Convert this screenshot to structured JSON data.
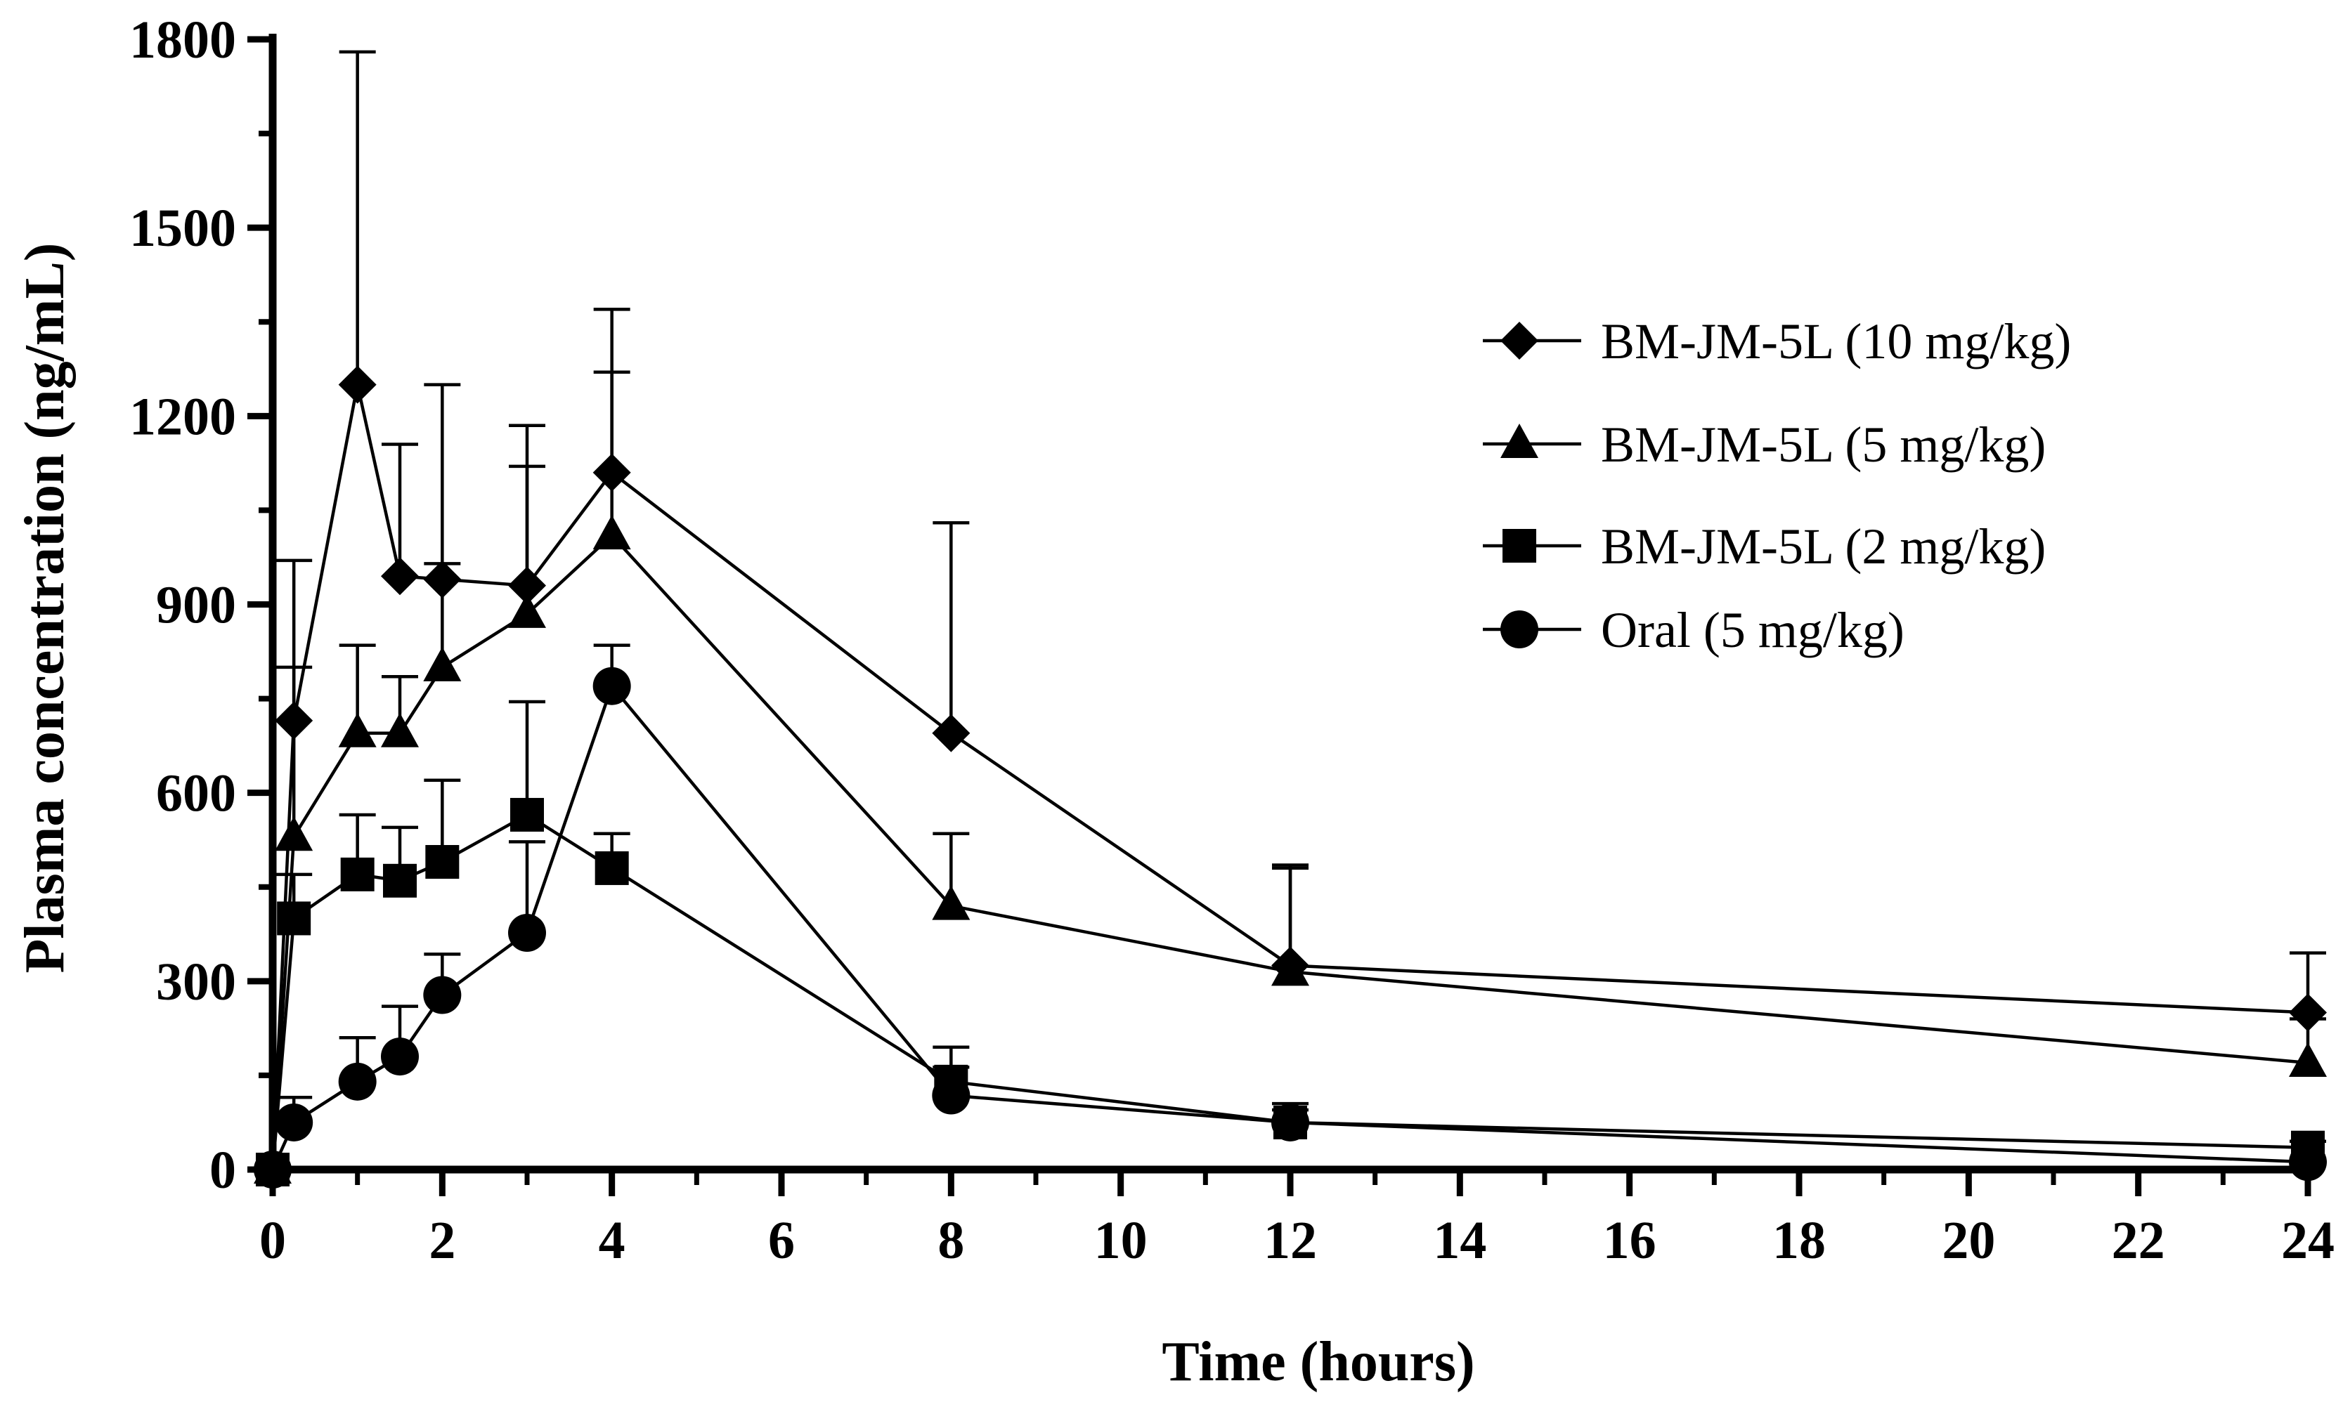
{
  "chart_data": {
    "type": "line",
    "title": "",
    "xlabel": "Time (hours)",
    "ylabel": "Plasma concentration  (ng/mL)",
    "xlim": [
      0,
      24
    ],
    "ylim": [
      0,
      1800
    ],
    "xticks": [
      "0",
      "2",
      "4",
      "6",
      "8",
      "10",
      "12",
      "14",
      "16",
      "18",
      "20",
      "22",
      "24"
    ],
    "yticks": [
      "0",
      "300",
      "600",
      "900",
      "1200",
      "1500",
      "1800"
    ],
    "grid": false,
    "legend_position": "top-right",
    "series": [
      {
        "name": "BM-JM-5L (10 mg/kg)",
        "marker": "diamond",
        "x": [
          0,
          0.25,
          1,
          1.5,
          2,
          3,
          4,
          8,
          12,
          24
        ],
        "y": [
          0,
          715,
          1250,
          945,
          940,
          930,
          1110,
          695,
          325,
          250
        ],
        "err": [
          0,
          255,
          530,
          210,
          310,
          255,
          260,
          335,
          160,
          95
        ]
      },
      {
        "name": "BM-JM-5L (5 mg/kg)",
        "marker": "triangle",
        "x": [
          0,
          0.25,
          1,
          1.5,
          2,
          3,
          4,
          8,
          12,
          24
        ],
        "y": [
          0,
          530,
          695,
          695,
          800,
          885,
          1010,
          420,
          315,
          170
        ],
        "err": [
          0,
          270,
          140,
          90,
          165,
          235,
          260,
          115,
          165,
          70
        ]
      },
      {
        "name": "BM-JM-5L (2 mg/kg)",
        "marker": "square",
        "x": [
          0,
          0.25,
          1,
          1.5,
          2,
          3,
          4,
          8,
          12,
          24
        ],
        "y": [
          0,
          400,
          470,
          460,
          490,
          565,
          480,
          140,
          75,
          35
        ],
        "err": [
          0,
          70,
          95,
          85,
          130,
          180,
          55,
          55,
          20,
          10
        ]
      },
      {
        "name": "Oral (5 mg/kg)",
        "marker": "circle",
        "x": [
          0,
          0.25,
          1,
          1.5,
          2,
          3,
          4,
          8,
          12,
          24
        ],
        "y": [
          0,
          75,
          140,
          180,
          278,
          377,
          770,
          118,
          75,
          12
        ],
        "err": [
          0,
          40,
          70,
          80,
          65,
          145,
          65,
          45,
          30,
          5
        ]
      }
    ]
  }
}
